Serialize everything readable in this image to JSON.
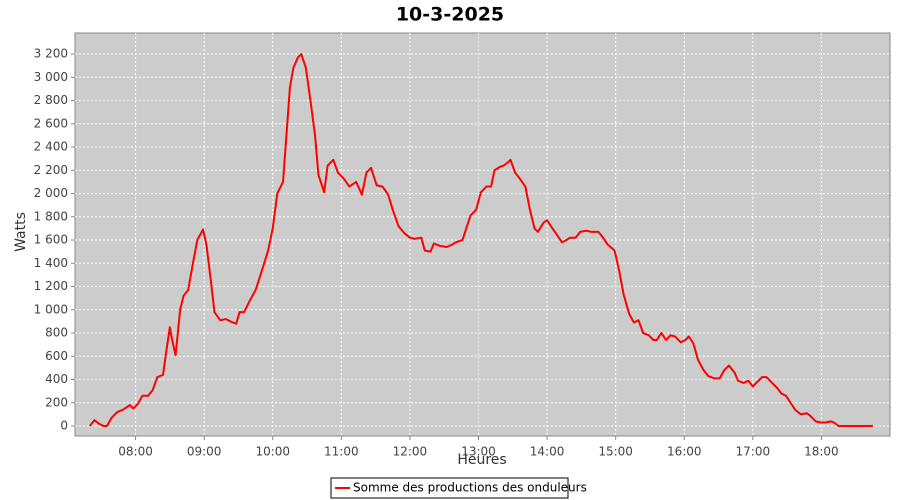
{
  "chart_data": {
    "type": "line",
    "title": "10-3-2025",
    "x_label": "Heures",
    "y_label": "Watts",
    "x": [
      "07:20",
      "07:24",
      "07:28",
      "07:32",
      "07:35",
      "07:39",
      "07:44",
      "07:49",
      "07:55",
      "07:58",
      "08:02",
      "08:06",
      "08:11",
      "08:15",
      "08:19",
      "08:24",
      "08:27",
      "08:30",
      "08:32",
      "08:35",
      "08:39",
      "08:42",
      "08:46",
      "08:50",
      "08:54",
      "08:59",
      "09:02",
      "09:06",
      "09:09",
      "09:14",
      "09:19",
      "09:24",
      "09:28",
      "09:31",
      "09:35",
      "09:40",
      "09:45",
      "09:50",
      "09:56",
      "10:00",
      "10:04",
      "10:09",
      "10:11",
      "10:15",
      "10:18",
      "10:22",
      "10:25",
      "10:29",
      "10:33",
      "10:37",
      "10:40",
      "10:45",
      "10:48",
      "10:53",
      "10:57",
      "11:02",
      "11:07",
      "11:13",
      "11:18",
      "11:22",
      "11:26",
      "11:31",
      "11:36",
      "11:41",
      "11:45",
      "11:50",
      "11:55",
      "12:00",
      "12:04",
      "12:10",
      "12:13",
      "12:18",
      "12:21",
      "12:26",
      "12:32",
      "12:37",
      "12:40",
      "12:46",
      "12:49",
      "12:53",
      "12:58",
      "13:02",
      "13:07",
      "13:11",
      "13:14",
      "13:19",
      "13:22",
      "13:26",
      "13:28",
      "13:32",
      "13:36",
      "13:41",
      "13:45",
      "13:49",
      "13:52",
      "13:57",
      "14:00",
      "14:04",
      "14:09",
      "14:13",
      "14:17",
      "14:20",
      "14:25",
      "14:29",
      "14:34",
      "14:39",
      "14:45",
      "14:49",
      "14:53",
      "14:59",
      "15:03",
      "15:07",
      "15:12",
      "15:16",
      "15:20",
      "15:24",
      "15:29",
      "15:33",
      "15:36",
      "15:40",
      "15:44",
      "15:48",
      "15:52",
      "15:57",
      "16:01",
      "16:04",
      "16:08",
      "16:12",
      "16:17",
      "16:21",
      "16:26",
      "16:31",
      "16:35",
      "16:39",
      "16:44",
      "16:47",
      "16:52",
      "16:56",
      "17:00",
      "17:04",
      "17:08",
      "17:12",
      "17:16",
      "17:21",
      "17:25",
      "17:29",
      "17:33",
      "17:37",
      "17:42",
      "17:47",
      "17:50",
      "17:55",
      "17:59",
      "18:04",
      "18:08",
      "18:11",
      "18:15",
      "18:21",
      "18:30",
      "18:39",
      "18:45"
    ],
    "series": [
      {
        "name": "Somme des productions des onduleurs",
        "color": "#ff0000",
        "values": [
          0,
          50,
          20,
          0,
          0,
          70,
          120,
          140,
          180,
          150,
          190,
          260,
          260,
          310,
          420,
          440,
          650,
          850,
          740,
          610,
          1000,
          1120,
          1170,
          1390,
          1600,
          1690,
          1560,
          1240,
          980,
          910,
          920,
          895,
          880,
          980,
          980,
          1080,
          1170,
          1320,
          1510,
          1700,
          2000,
          2100,
          2370,
          2910,
          3080,
          3170,
          3200,
          3080,
          2800,
          2500,
          2160,
          2010,
          2240,
          2290,
          2180,
          2130,
          2060,
          2100,
          1990,
          2180,
          2220,
          2070,
          2060,
          1990,
          1860,
          1720,
          1660,
          1620,
          1610,
          1620,
          1510,
          1500,
          1570,
          1550,
          1540,
          1560,
          1580,
          1600,
          1690,
          1810,
          1860,
          2010,
          2060,
          2060,
          2200,
          2230,
          2240,
          2270,
          2290,
          2180,
          2130,
          2060,
          1860,
          1700,
          1670,
          1750,
          1770,
          1710,
          1640,
          1580,
          1600,
          1620,
          1620,
          1670,
          1680,
          1670,
          1670,
          1620,
          1560,
          1510,
          1340,
          1130,
          960,
          890,
          910,
          800,
          780,
          740,
          740,
          800,
          740,
          780,
          770,
          720,
          740,
          770,
          710,
          570,
          480,
          430,
          410,
          410,
          480,
          520,
          460,
          390,
          370,
          390,
          340,
          380,
          420,
          420,
          380,
          330,
          280,
          260,
          200,
          140,
          100,
          110,
          90,
          40,
          30,
          30,
          40,
          30,
          0,
          0,
          0,
          0,
          0
        ]
      }
    ],
    "xlim": [
      "07:07",
      "19:00"
    ],
    "xticks": [
      "08:00",
      "09:00",
      "10:00",
      "11:00",
      "12:00",
      "13:00",
      "14:00",
      "15:00",
      "16:00",
      "17:00",
      "18:00"
    ],
    "ylim": [
      -86,
      3381
    ],
    "yticks": [
      0,
      200,
      400,
      600,
      800,
      {
        "value": 1000,
        "label": "1 000"
      },
      {
        "value": 1200,
        "label": "1 200"
      },
      {
        "value": 1400,
        "label": "1 400"
      },
      {
        "value": 1600,
        "label": "1 600"
      },
      {
        "value": 1800,
        "label": "1 800"
      },
      {
        "value": 2000,
        "label": "2 000"
      },
      {
        "value": 2200,
        "label": "2 200"
      },
      {
        "value": 2400,
        "label": "2 400"
      },
      {
        "value": 2600,
        "label": "2 600"
      },
      {
        "value": 2800,
        "label": "2 800"
      },
      {
        "value": 3000,
        "label": "3 000"
      },
      {
        "value": 3200,
        "label": "3 200"
      }
    ],
    "grid": true,
    "legend": "bottom"
  }
}
